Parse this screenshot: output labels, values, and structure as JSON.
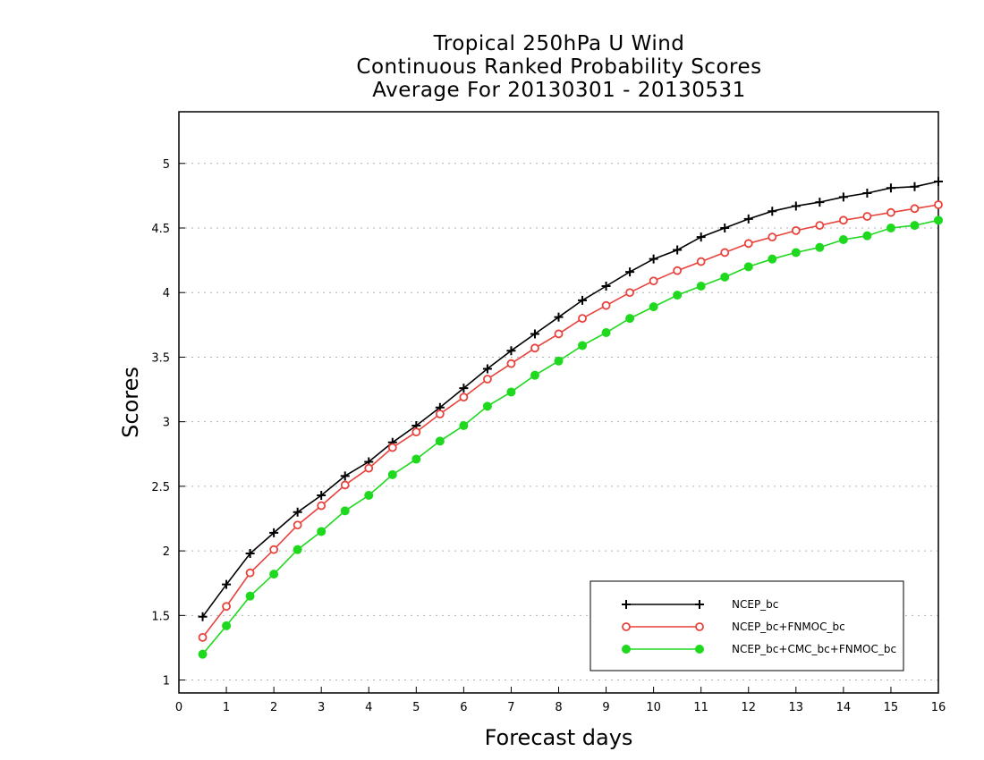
{
  "chart_data": {
    "type": "line",
    "title_lines": [
      "Tropical 250hPa U Wind",
      "Continuous Ranked Probability Scores",
      "Average For 20130301 - 20130531"
    ],
    "xlabel": "Forecast days",
    "ylabel": "Scores",
    "xlim": [
      0,
      16
    ],
    "ylim": [
      0.9,
      5.4
    ],
    "xticks": [
      0,
      1,
      2,
      3,
      4,
      5,
      6,
      7,
      8,
      9,
      10,
      11,
      12,
      13,
      14,
      15,
      16
    ],
    "yticks": [
      1,
      1.5,
      2,
      2.5,
      3,
      3.5,
      4,
      4.5,
      5
    ],
    "ytick_labels": [
      "1",
      "1.5",
      "2",
      "2.5",
      "3",
      "3.5",
      "4",
      "4.5",
      "5"
    ],
    "grid": "horizontal-dotted",
    "legend_position": "bottom-right",
    "x": [
      0.5,
      1,
      1.5,
      2,
      2.5,
      3,
      3.5,
      4,
      4.5,
      5,
      5.5,
      6,
      6.5,
      7,
      7.5,
      8,
      8.5,
      9,
      9.5,
      10,
      10.5,
      11,
      11.5,
      12,
      12.5,
      13,
      13.5,
      14,
      14.5,
      15,
      15.5,
      16
    ],
    "series": [
      {
        "name": "NCEP_bc",
        "color": "#000000",
        "marker": "plus",
        "values": [
          1.49,
          1.74,
          1.98,
          2.14,
          2.3,
          2.43,
          2.58,
          2.69,
          2.84,
          2.97,
          3.11,
          3.26,
          3.41,
          3.55,
          3.68,
          3.81,
          3.94,
          4.05,
          4.16,
          4.26,
          4.33,
          4.43,
          4.5,
          4.57,
          4.63,
          4.67,
          4.7,
          4.74,
          4.77,
          4.81,
          4.82,
          4.86
        ]
      },
      {
        "name": "NCEP_bc+FNMOC_bc",
        "color": "#e8423c",
        "marker": "open-circle",
        "values": [
          1.33,
          1.57,
          1.83,
          2.01,
          2.2,
          2.35,
          2.51,
          2.64,
          2.8,
          2.92,
          3.06,
          3.19,
          3.33,
          3.45,
          3.57,
          3.68,
          3.8,
          3.9,
          4.0,
          4.09,
          4.17,
          4.24,
          4.31,
          4.38,
          4.43,
          4.48,
          4.52,
          4.56,
          4.59,
          4.62,
          4.65,
          4.68
        ]
      },
      {
        "name": "NCEP_bc+CMC_bc+FNMOC_bc",
        "color": "#1ed91e",
        "marker": "filled-circle",
        "values": [
          1.2,
          1.42,
          1.65,
          1.82,
          2.01,
          2.15,
          2.31,
          2.43,
          2.59,
          2.71,
          2.85,
          2.97,
          3.12,
          3.23,
          3.36,
          3.47,
          3.59,
          3.69,
          3.8,
          3.89,
          3.98,
          4.05,
          4.12,
          4.2,
          4.26,
          4.31,
          4.35,
          4.41,
          4.44,
          4.5,
          4.52,
          4.56
        ]
      }
    ]
  }
}
